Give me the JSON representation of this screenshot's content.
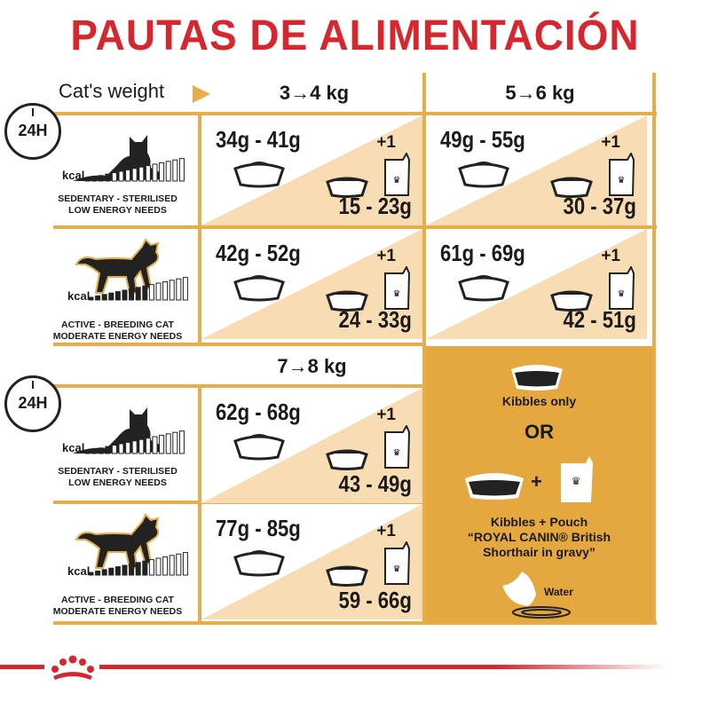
{
  "title": "PAUTAS DE ALIMENTACIÓN",
  "weight_label": "Cat's weight",
  "weights": [
    "3→4 kg",
    "5→6 kg",
    "7→8 kg"
  ],
  "clock_label": "24H",
  "kcal_label": "kcal",
  "profiles": [
    {
      "line1": "SEDENTARY - STERILISED",
      "line2": "LOW ENERGY NEEDS",
      "icon": "lying-cat-icon"
    },
    {
      "line1": "ACTIVE - BREEDING CAT",
      "line2": "MODERATE ENERGY NEEDS",
      "icon": "walking-cat-icon"
    }
  ],
  "plus_one": "+1",
  "cells": [
    {
      "weight": "3→4 kg",
      "profile": "sedentary",
      "kibbles_only": "34g - 41g",
      "with_pouch": "15 - 23g"
    },
    {
      "weight": "5→6 kg",
      "profile": "sedentary",
      "kibbles_only": "49g - 55g",
      "with_pouch": "30 - 37g"
    },
    {
      "weight": "3→4 kg",
      "profile": "active",
      "kibbles_only": "42g - 52g",
      "with_pouch": "24 - 33g"
    },
    {
      "weight": "5→6 kg",
      "profile": "active",
      "kibbles_only": "61g - 69g",
      "with_pouch": "42 - 51g"
    },
    {
      "weight": "7→8 kg",
      "profile": "sedentary",
      "kibbles_only": "62g - 68g",
      "with_pouch": "43 - 49g"
    },
    {
      "weight": "7→8 kg",
      "profile": "active",
      "kibbles_only": "77g - 85g",
      "with_pouch": "59 - 66g"
    }
  ],
  "legend": {
    "kibbles_only": "Kibbles only",
    "or": "OR",
    "plus": "+",
    "pouch_line1": "Kibbles + Pouch",
    "pouch_line2": "“ROYAL CANIN® British",
    "pouch_line3": "Shorthair in gravy”",
    "water": "Water"
  },
  "colors": {
    "title": "#d7262d",
    "gold": "#e6ad4a",
    "peach": "#f8dcb3",
    "panel": "#e5a83f"
  },
  "logo": "Royal Canin crown"
}
